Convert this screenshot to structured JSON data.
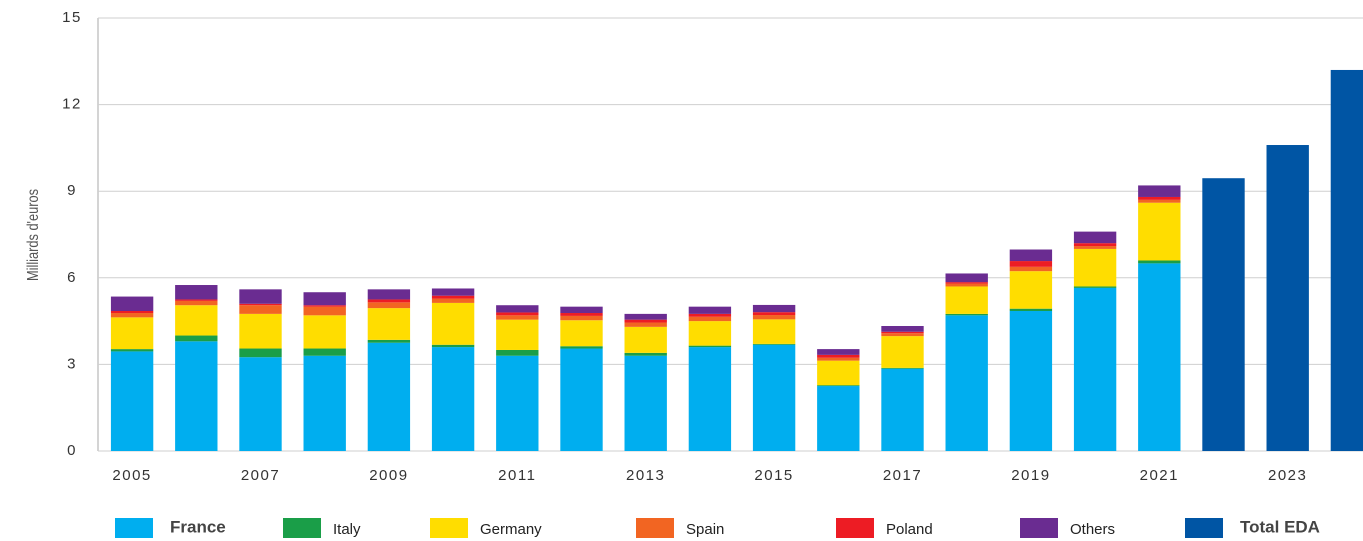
{
  "chart_data": {
    "type": "stacked_bar",
    "y_label": "Milliards d'euros",
    "categories": [
      "2005",
      null,
      "2007",
      null,
      "2009",
      null,
      "2011",
      null,
      "2013",
      null,
      "2015",
      null,
      "2017",
      null,
      "2019",
      null,
      "2021",
      null,
      "2023",
      null
    ],
    "series": [
      {
        "name": "France",
        "color": "#00aeef",
        "values": [
          3.45,
          3.8,
          3.25,
          3.3,
          3.75,
          3.6,
          3.3,
          3.55,
          3.3,
          3.6,
          3.68,
          2.25,
          2.85,
          4.7,
          4.85,
          5.65,
          6.5,
          null,
          null,
          null
        ]
      },
      {
        "name": "Italy",
        "color": "#1a9e48",
        "values": [
          0.08,
          0.2,
          0.3,
          0.25,
          0.1,
          0.08,
          0.2,
          0.08,
          0.1,
          0.05,
          0.03,
          0.03,
          0.03,
          0.05,
          0.08,
          0.05,
          0.1,
          null,
          null,
          null
        ]
      },
      {
        "name": "Germany",
        "color": "#ffdd00",
        "values": [
          1.1,
          1.05,
          1.2,
          1.15,
          1.1,
          1.45,
          1.05,
          0.9,
          0.9,
          0.85,
          0.85,
          0.85,
          1.1,
          0.95,
          1.3,
          1.3,
          2.0,
          null,
          null,
          null
        ]
      },
      {
        "name": "Spain",
        "color": "#f26522",
        "values": [
          0.15,
          0.15,
          0.3,
          0.3,
          0.2,
          0.15,
          0.15,
          0.15,
          0.15,
          0.15,
          0.15,
          0.1,
          0.1,
          0.1,
          0.15,
          0.1,
          0.1,
          null,
          null,
          null
        ]
      },
      {
        "name": "Poland",
        "color": "#ed1c24",
        "values": [
          0.07,
          0.05,
          0.05,
          0.05,
          0.1,
          0.1,
          0.1,
          0.1,
          0.1,
          0.1,
          0.1,
          0.1,
          0.05,
          0.05,
          0.2,
          0.1,
          0.1,
          null,
          null,
          null
        ]
      },
      {
        "name": "Others",
        "color": "#6a2c91",
        "values": [
          0.5,
          0.5,
          0.5,
          0.45,
          0.35,
          0.25,
          0.25,
          0.22,
          0.2,
          0.25,
          0.25,
          0.2,
          0.2,
          0.3,
          0.4,
          0.4,
          0.4,
          null,
          null,
          null
        ]
      },
      {
        "name": "Total EDA",
        "color": "#0055a4",
        "values": [
          null,
          null,
          null,
          null,
          null,
          null,
          null,
          null,
          null,
          null,
          null,
          null,
          null,
          null,
          null,
          null,
          null,
          9.45,
          10.6,
          13.2
        ]
      }
    ],
    "ylim": [
      0,
      15
    ],
    "yticks": [
      0,
      3,
      6,
      9,
      12,
      15
    ],
    "grid": true,
    "legend": "bottom"
  }
}
